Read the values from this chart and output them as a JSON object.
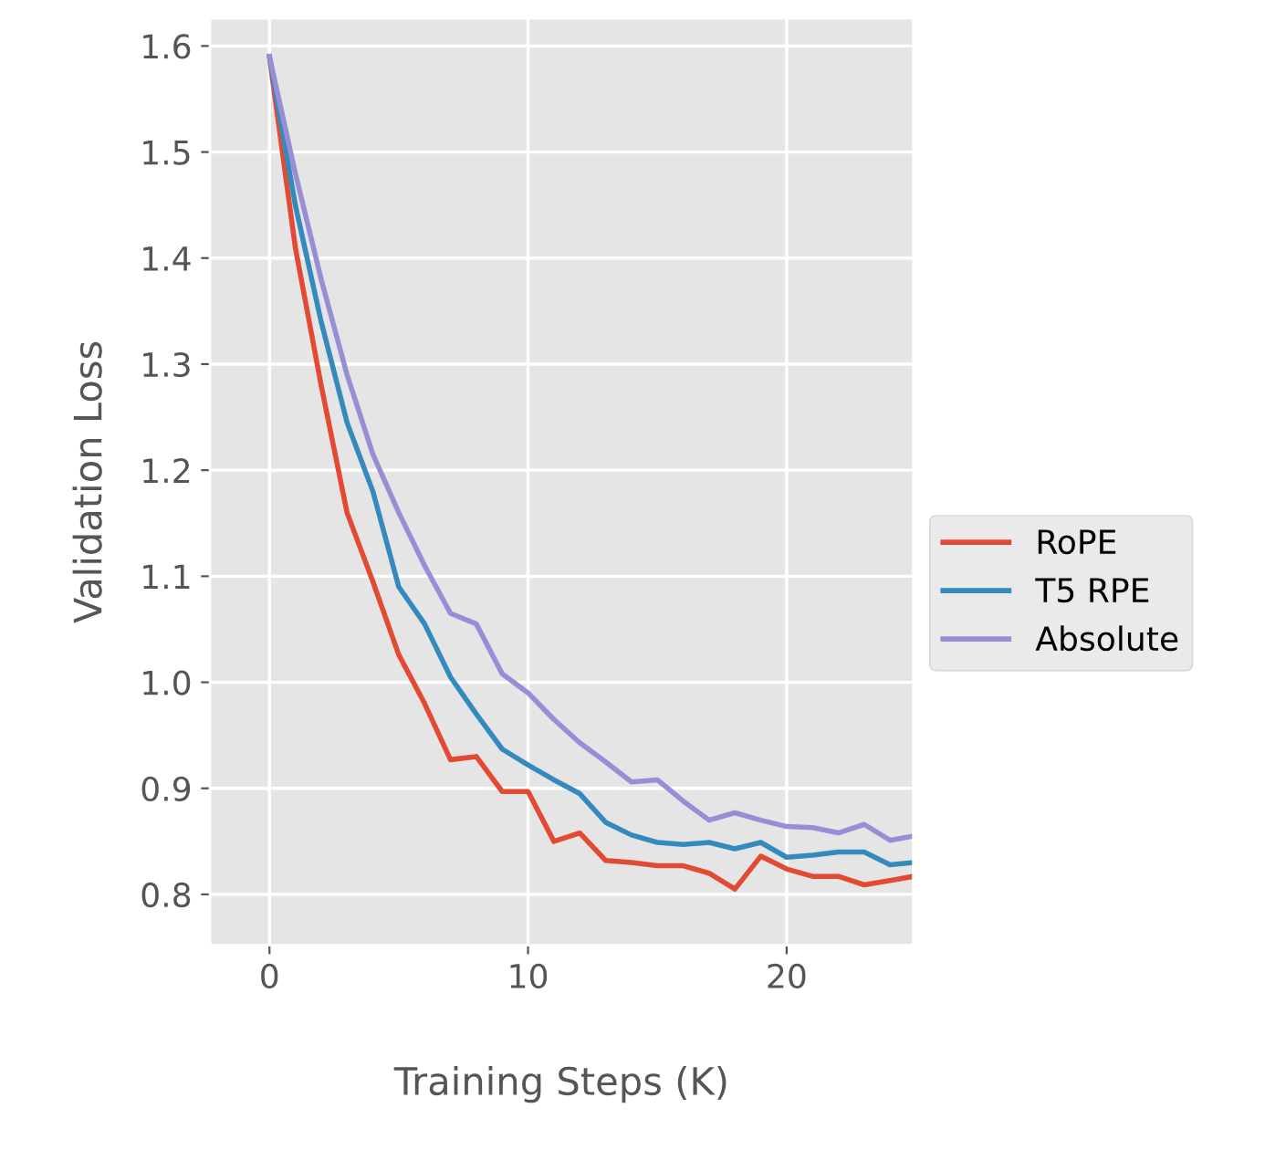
{
  "chart_data": {
    "type": "line",
    "xlabel": "Training Steps (K)",
    "ylabel": "Validation Loss",
    "x": [
      0,
      1,
      2,
      3,
      4,
      5,
      6,
      7,
      8,
      9,
      10,
      11,
      12,
      13,
      14,
      15,
      16,
      17,
      18,
      19,
      20,
      21,
      22,
      23,
      24,
      24.9
    ],
    "series": [
      {
        "name": "RoPE",
        "color": "#e24a33",
        "values": [
          1.59,
          1.41,
          1.28,
          1.16,
          1.095,
          1.026,
          0.98,
          0.927,
          0.93,
          0.897,
          0.897,
          0.85,
          0.858,
          0.832,
          0.83,
          0.827,
          0.827,
          0.82,
          0.805,
          0.836,
          0.824,
          0.817,
          0.817,
          0.809,
          0.813,
          0.817
        ]
      },
      {
        "name": "T5 RPE",
        "color": "#348abd",
        "values": [
          1.59,
          1.45,
          1.34,
          1.245,
          1.18,
          1.09,
          1.055,
          1.005,
          0.97,
          0.937,
          0.922,
          0.908,
          0.895,
          0.868,
          0.856,
          0.849,
          0.847,
          0.849,
          0.843,
          0.849,
          0.835,
          0.837,
          0.84,
          0.84,
          0.828,
          0.83
        ]
      },
      {
        "name": "Absolute",
        "color": "#988ed5",
        "values": [
          1.59,
          1.48,
          1.38,
          1.29,
          1.215,
          1.16,
          1.11,
          1.065,
          1.055,
          1.008,
          0.99,
          0.965,
          0.943,
          0.925,
          0.906,
          0.908,
          0.888,
          0.87,
          0.877,
          0.87,
          0.864,
          0.863,
          0.858,
          0.866,
          0.851,
          0.855
        ]
      }
    ],
    "xlim": [
      -2.3,
      24.9
    ],
    "xticks": [
      0,
      10,
      20
    ],
    "ylim": [
      0.752,
      1.626
    ],
    "yticks": [
      0.8,
      0.9,
      {
        "value": 1.0,
        "label": "1.0"
      },
      1.1,
      1.2,
      1.3,
      1.4,
      1.5,
      1.6
    ],
    "grid": true,
    "legend": "right",
    "marker": "none",
    "line_style": "solid"
  }
}
